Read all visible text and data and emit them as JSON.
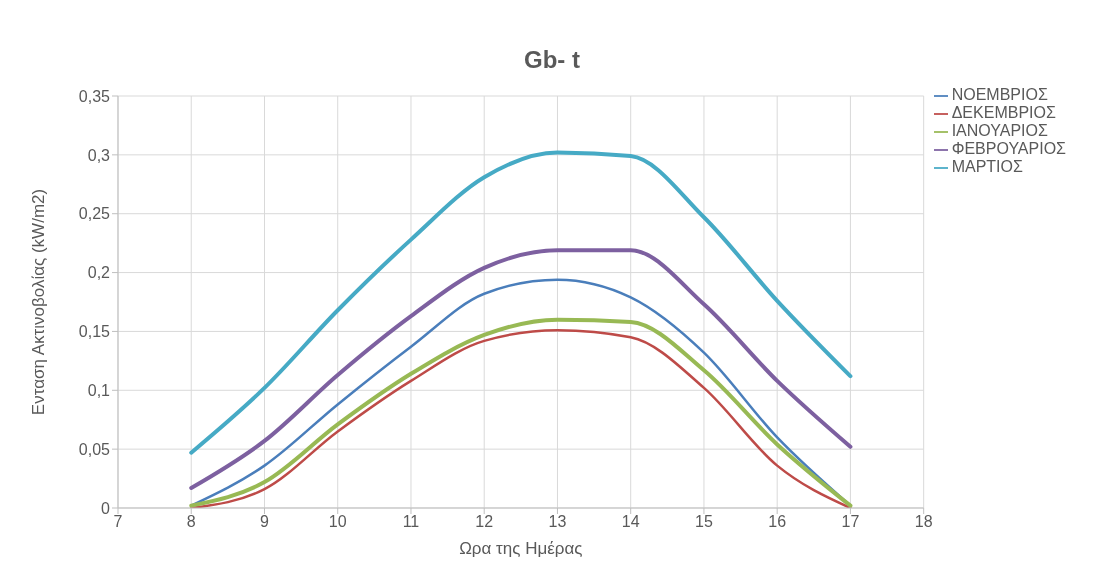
{
  "chart_data": {
    "type": "line",
    "title": "Gb- t",
    "xlabel": "Ωρα της Ημέρας",
    "ylabel": "Ενταση Ακτινοβολίας (kW/m2)",
    "x": [
      8,
      9,
      10,
      11,
      12,
      13,
      14,
      15,
      16,
      17
    ],
    "series": [
      {
        "name": "ΝΟΕΜΒΡΙΟΣ",
        "color": "#4a7ebb",
        "values": [
          0.002,
          0.036,
          0.088,
          0.137,
          0.182,
          0.194,
          0.179,
          0.132,
          0.06,
          0.002
        ]
      },
      {
        "name": "ΔΕΚΕΜΒΡΙΟΣ",
        "color": "#be4b48",
        "values": [
          0,
          0.016,
          0.065,
          0.108,
          0.142,
          0.151,
          0.145,
          0.102,
          0.036,
          0
        ]
      },
      {
        "name": "ΙΑΝΟΥΑΡΙΟΣ",
        "color": "#98b954",
        "values": [
          0.002,
          0.022,
          0.071,
          0.114,
          0.147,
          0.16,
          0.158,
          0.117,
          0.054,
          0.002
        ]
      },
      {
        "name": "ΦΕΒΡΟΥΑΡΙΟΣ",
        "color": "#7d60a0",
        "values": [
          0.017,
          0.057,
          0.113,
          0.163,
          0.204,
          0.219,
          0.219,
          0.173,
          0.108,
          0.052
        ]
      },
      {
        "name": "ΜΑΡΤΙΟΣ",
        "color": "#46aac5",
        "values": [
          0.047,
          0.102,
          0.168,
          0.228,
          0.281,
          0.302,
          0.299,
          0.247,
          0.176,
          0.112
        ]
      }
    ],
    "xlim": [
      7,
      18
    ],
    "xticks": [
      7,
      8,
      9,
      10,
      11,
      12,
      13,
      14,
      15,
      16,
      17,
      18
    ],
    "ylim": [
      0,
      0.35
    ],
    "yticks": [
      0,
      {
        "value": 0.05,
        "label": "0,05"
      },
      {
        "value": 0.1,
        "label": "0,1"
      },
      {
        "value": 0.15,
        "label": "0,15"
      },
      {
        "value": 0.2,
        "label": "0,2"
      },
      {
        "value": 0.25,
        "label": "0,25"
      },
      {
        "value": 0.3,
        "label": "0,3"
      },
      {
        "value": 0.35,
        "label": "0,35"
      }
    ],
    "grid": true,
    "legend": "top right",
    "marker": "none",
    "line_style": "solid"
  }
}
